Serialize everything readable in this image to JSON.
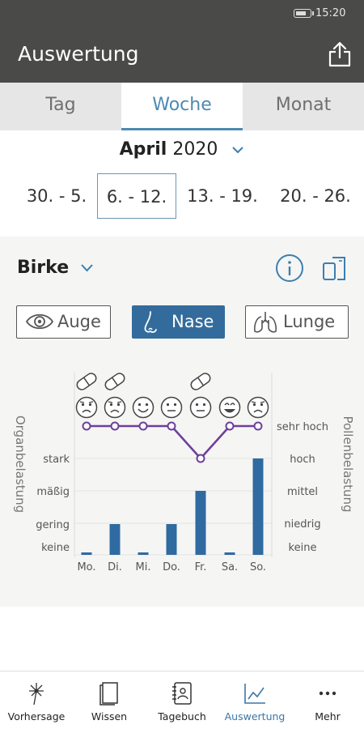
{
  "status": {
    "time": "15:20"
  },
  "appbar": {
    "title": "Auswertung"
  },
  "tabs": [
    {
      "label": "Tag"
    },
    {
      "label": "Woche"
    },
    {
      "label": "Monat"
    }
  ],
  "period": {
    "month": "April",
    "year": "2020"
  },
  "weeks": [
    "30. - 5.",
    "6. - 12.",
    "13. - 19.",
    "20. - 26."
  ],
  "plant": {
    "name": "Birke"
  },
  "organs": [
    {
      "label": "Auge",
      "icon": "eye-icon"
    },
    {
      "label": "Nase",
      "icon": "nose-icon"
    },
    {
      "label": "Lunge",
      "icon": "lungs-icon"
    }
  ],
  "chart_data": {
    "type": "bar",
    "categories": [
      "Mo.",
      "Di.",
      "Mi.",
      "Do.",
      "Fr.",
      "Sa.",
      "So."
    ],
    "left_axis_title": "Organbelastung",
    "left_levels": [
      "keine",
      "gering",
      "mäßig",
      "stark"
    ],
    "right_axis_title": "Pollenbelastung",
    "right_levels": [
      "keine",
      "niedrig",
      "mittel",
      "hoch",
      "sehr hoch"
    ],
    "organ_load": [
      0,
      1,
      0,
      1,
      2,
      0,
      3
    ],
    "pollen_load": [
      4,
      4,
      4,
      4,
      3,
      4,
      4
    ],
    "medication_taken": [
      true,
      true,
      false,
      false,
      true,
      false,
      false
    ],
    "mood": [
      "sad",
      "sad",
      "happy",
      "neutral",
      "neutral",
      "grin",
      "sad"
    ],
    "bar_color": "#2f6aa1",
    "line_color": "#6e3f9a"
  },
  "nav": [
    {
      "label": "Vorhersage",
      "icon": "dandelion-icon"
    },
    {
      "label": "Wissen",
      "icon": "book-icon"
    },
    {
      "label": "Tagebuch",
      "icon": "diary-icon"
    },
    {
      "label": "Auswertung",
      "icon": "chart-icon"
    },
    {
      "label": "Mehr",
      "icon": "more-icon"
    }
  ],
  "colors": {
    "accent": "#4d8ab3",
    "header": "#4a4a48",
    "active_button": "#336c9c"
  }
}
